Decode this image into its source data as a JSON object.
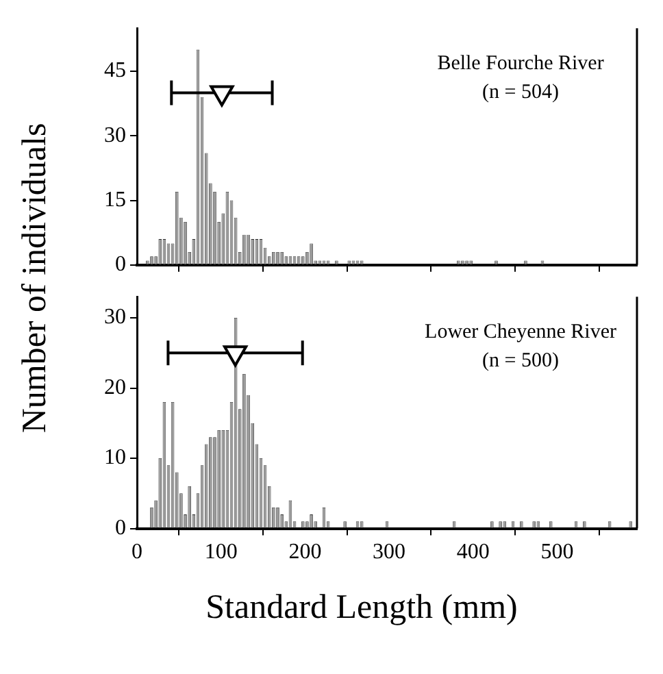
{
  "chart_data": [
    {
      "type": "histogram",
      "ylabel": "Number of individuals",
      "annotations": [
        "Belle Fourche River",
        "(n = 504)"
      ],
      "color": "#9a9a9a",
      "bins": [
        0,
        5,
        10,
        15,
        20,
        25,
        30,
        35,
        40,
        45,
        50,
        55,
        60,
        65,
        70,
        75,
        80,
        85,
        90,
        95,
        100,
        105,
        110,
        115,
        120,
        125,
        130,
        135,
        140,
        145,
        150,
        155,
        160,
        165,
        170,
        175,
        180,
        185,
        190,
        195,
        200,
        205,
        210,
        215,
        220,
        225,
        230,
        235,
        240,
        245,
        250,
        255,
        260,
        265,
        270,
        275,
        280,
        285,
        290,
        295,
        300,
        305,
        310,
        315,
        320,
        325,
        330,
        335,
        340,
        345,
        350,
        355,
        360,
        365,
        370,
        375,
        380,
        385,
        390,
        395,
        400,
        405,
        410,
        415,
        420,
        425,
        430,
        435,
        440,
        445,
        450,
        455,
        460,
        465,
        470,
        475,
        480,
        485,
        490,
        495,
        500,
        505,
        510,
        515,
        520,
        525,
        530,
        535,
        540,
        545,
        550,
        555,
        560,
        565,
        570,
        575,
        580,
        585,
        590,
        595
      ],
      "values": [
        0,
        0,
        1,
        2,
        2,
        6,
        6,
        5,
        5,
        17,
        11,
        10,
        3,
        6,
        50,
        39,
        26,
        19,
        17,
        10,
        12,
        17,
        15,
        11,
        3,
        7,
        7,
        6,
        6,
        6,
        4,
        2,
        3,
        3,
        3,
        2,
        2,
        2,
        2,
        2,
        3,
        5,
        1,
        1,
        1,
        1,
        0,
        1,
        0,
        0,
        1,
        1,
        1,
        1,
        0,
        0,
        0,
        0,
        0,
        0,
        0,
        0,
        0,
        0,
        0,
        0,
        0,
        0,
        0,
        0,
        0,
        0,
        0,
        0,
        0,
        0,
        1,
        1,
        1,
        1,
        0,
        0,
        0,
        0,
        0,
        1,
        0,
        0,
        0,
        0,
        0,
        0,
        1,
        0,
        0,
        0,
        1,
        0,
        0,
        0,
        0,
        0,
        0,
        0,
        0,
        0,
        0,
        0,
        0,
        0,
        0,
        0,
        0,
        0,
        0,
        0,
        0,
        0,
        0
      ],
      "series": [
        {
          "type": "scatter",
          "color": "#ffffff",
          "x": [
            101
          ],
          "values": [
            40
          ],
          "xerrors": [
            60
          ]
        }
      ],
      "marker": "triangle",
      "xlim": [
        0,
        595
      ],
      "ylim": [
        0,
        55
      ],
      "xticks": [
        0,
        100,
        200,
        300,
        400,
        500
      ],
      "yticks": [
        0,
        15,
        30,
        45
      ],
      "tick_labels": "y"
    },
    {
      "type": "histogram",
      "xlabel": "Standard Length (mm)",
      "annotations": [
        "Lower Cheyenne River",
        "(n = 500)"
      ],
      "color": "#9a9a9a",
      "bins": [
        0,
        5,
        10,
        15,
        20,
        25,
        30,
        35,
        40,
        45,
        50,
        55,
        60,
        65,
        70,
        75,
        80,
        85,
        90,
        95,
        100,
        105,
        110,
        115,
        120,
        125,
        130,
        135,
        140,
        145,
        150,
        155,
        160,
        165,
        170,
        175,
        180,
        185,
        190,
        195,
        200,
        205,
        210,
        215,
        220,
        225,
        230,
        235,
        240,
        245,
        250,
        255,
        260,
        265,
        270,
        275,
        280,
        285,
        290,
        295,
        300,
        305,
        310,
        315,
        320,
        325,
        330,
        335,
        340,
        345,
        350,
        355,
        360,
        365,
        370,
        375,
        380,
        385,
        390,
        395,
        400,
        405,
        410,
        415,
        420,
        425,
        430,
        435,
        440,
        445,
        450,
        455,
        460,
        465,
        470,
        475,
        480,
        485,
        490,
        495,
        500,
        505,
        510,
        515,
        520,
        525,
        530,
        535,
        540,
        545,
        550,
        555,
        560,
        565,
        570,
        575,
        580,
        585,
        590,
        595
      ],
      "values": [
        0,
        0,
        0,
        3,
        4,
        10,
        18,
        9,
        18,
        8,
        5,
        2,
        6,
        2,
        5,
        9,
        12,
        13,
        13,
        14,
        14,
        14,
        18,
        30,
        17,
        22,
        19,
        15,
        12,
        10,
        9,
        6,
        3,
        3,
        2,
        1,
        4,
        1,
        0,
        1,
        1,
        2,
        1,
        0,
        3,
        1,
        0,
        0,
        0,
        1,
        0,
        0,
        1,
        1,
        0,
        0,
        0,
        0,
        0,
        1,
        0,
        0,
        0,
        0,
        0,
        0,
        0,
        0,
        0,
        0,
        0,
        0,
        0,
        0,
        0,
        1,
        0,
        0,
        0,
        0,
        0,
        0,
        0,
        0,
        1,
        0,
        1,
        1,
        0,
        1,
        0,
        1,
        0,
        0,
        1,
        1,
        0,
        0,
        1,
        0,
        0,
        0,
        0,
        0,
        1,
        0,
        1,
        0,
        0,
        0,
        0,
        0,
        1,
        0,
        0,
        0,
        0,
        1,
        0
      ],
      "series": [
        {
          "type": "scatter",
          "color": "#ffffff",
          "x": [
            117
          ],
          "values": [
            25
          ],
          "xerrors": [
            80
          ]
        }
      ],
      "marker": "triangle",
      "xlim": [
        0,
        595
      ],
      "ylim": [
        0,
        33
      ],
      "xticks": [
        0,
        100,
        200,
        300,
        400,
        500
      ],
      "yticks": [
        0,
        10,
        20,
        30
      ]
    }
  ]
}
